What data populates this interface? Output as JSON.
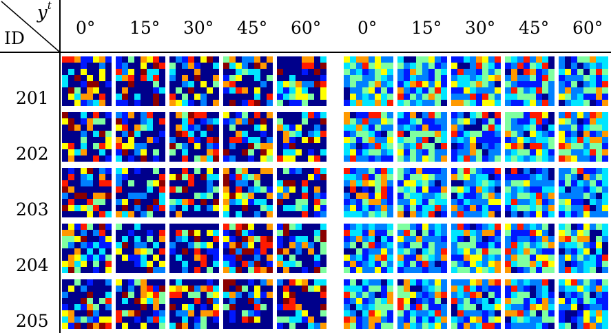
{
  "corner": {
    "top_label": "y",
    "top_sup": "t",
    "bottom_label": "ID"
  },
  "columns": {
    "left": [
      "0°",
      "15°",
      "30°",
      "45°",
      "60°"
    ],
    "right": [
      "0°",
      "15°",
      "30°",
      "45°",
      "60°"
    ]
  },
  "rows": [
    "201",
    "202",
    "203",
    "204",
    "205"
  ],
  "palette": {
    "dark_navy": "#00008b",
    "blue": "#0018ff",
    "mid_blue": "#0080ff",
    "cyan": "#00e5ff",
    "aqua_green": "#7fffa0",
    "yellow": "#ffff00",
    "orange": "#ff9900",
    "red": "#ff1a00",
    "dark_red": "#8b0000"
  }
}
